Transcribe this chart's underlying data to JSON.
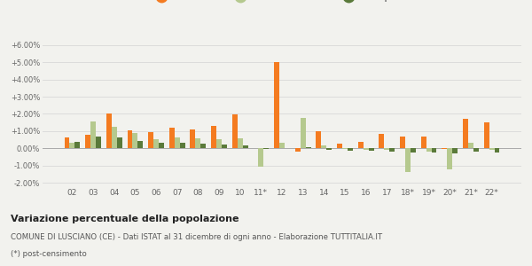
{
  "categories": [
    "02",
    "03",
    "04",
    "05",
    "06",
    "07",
    "08",
    "09",
    "10",
    "11*",
    "12",
    "13",
    "14",
    "15",
    "16",
    "17",
    "18*",
    "19*",
    "20*",
    "21*",
    "22*"
  ],
  "lusciano": [
    0.65,
    0.8,
    2.02,
    1.05,
    0.95,
    1.2,
    1.1,
    1.3,
    1.95,
    0.02,
    5.0,
    -0.2,
    1.0,
    0.25,
    0.4,
    0.85,
    0.7,
    0.7,
    -0.05,
    1.7,
    1.5
  ],
  "provincia_ce": [
    0.35,
    1.55,
    1.25,
    0.9,
    0.55,
    0.65,
    0.6,
    0.55,
    0.6,
    -1.05,
    0.3,
    1.75,
    0.18,
    -0.05,
    -0.08,
    -0.08,
    -1.35,
    -0.2,
    -1.2,
    0.3,
    -0.1
  ],
  "campania": [
    0.4,
    0.68,
    0.65,
    0.42,
    0.3,
    0.32,
    0.28,
    0.2,
    0.18,
    -0.05,
    0.02,
    0.05,
    -0.1,
    -0.12,
    -0.15,
    -0.18,
    -0.22,
    -0.25,
    -0.3,
    -0.2,
    -0.25
  ],
  "color_lusciano": "#f47b20",
  "color_provincia": "#b5c98e",
  "color_campania": "#5a7a3a",
  "ylim": [
    -2.2,
    6.3
  ],
  "yticks": [
    -2.0,
    -1.0,
    0.0,
    1.0,
    2.0,
    3.0,
    4.0,
    5.0,
    6.0
  ],
  "title_bold": "Variazione percentuale della popolazione",
  "subtitle": "COMUNE DI LUSCIANO (CE) - Dati ISTAT al 31 dicembre di ogni anno - Elaborazione TUTTITALIA.IT",
  "footnote": "(*) post-censimento",
  "bg_color": "#f2f2ee",
  "grid_color": "#d8d8d8"
}
